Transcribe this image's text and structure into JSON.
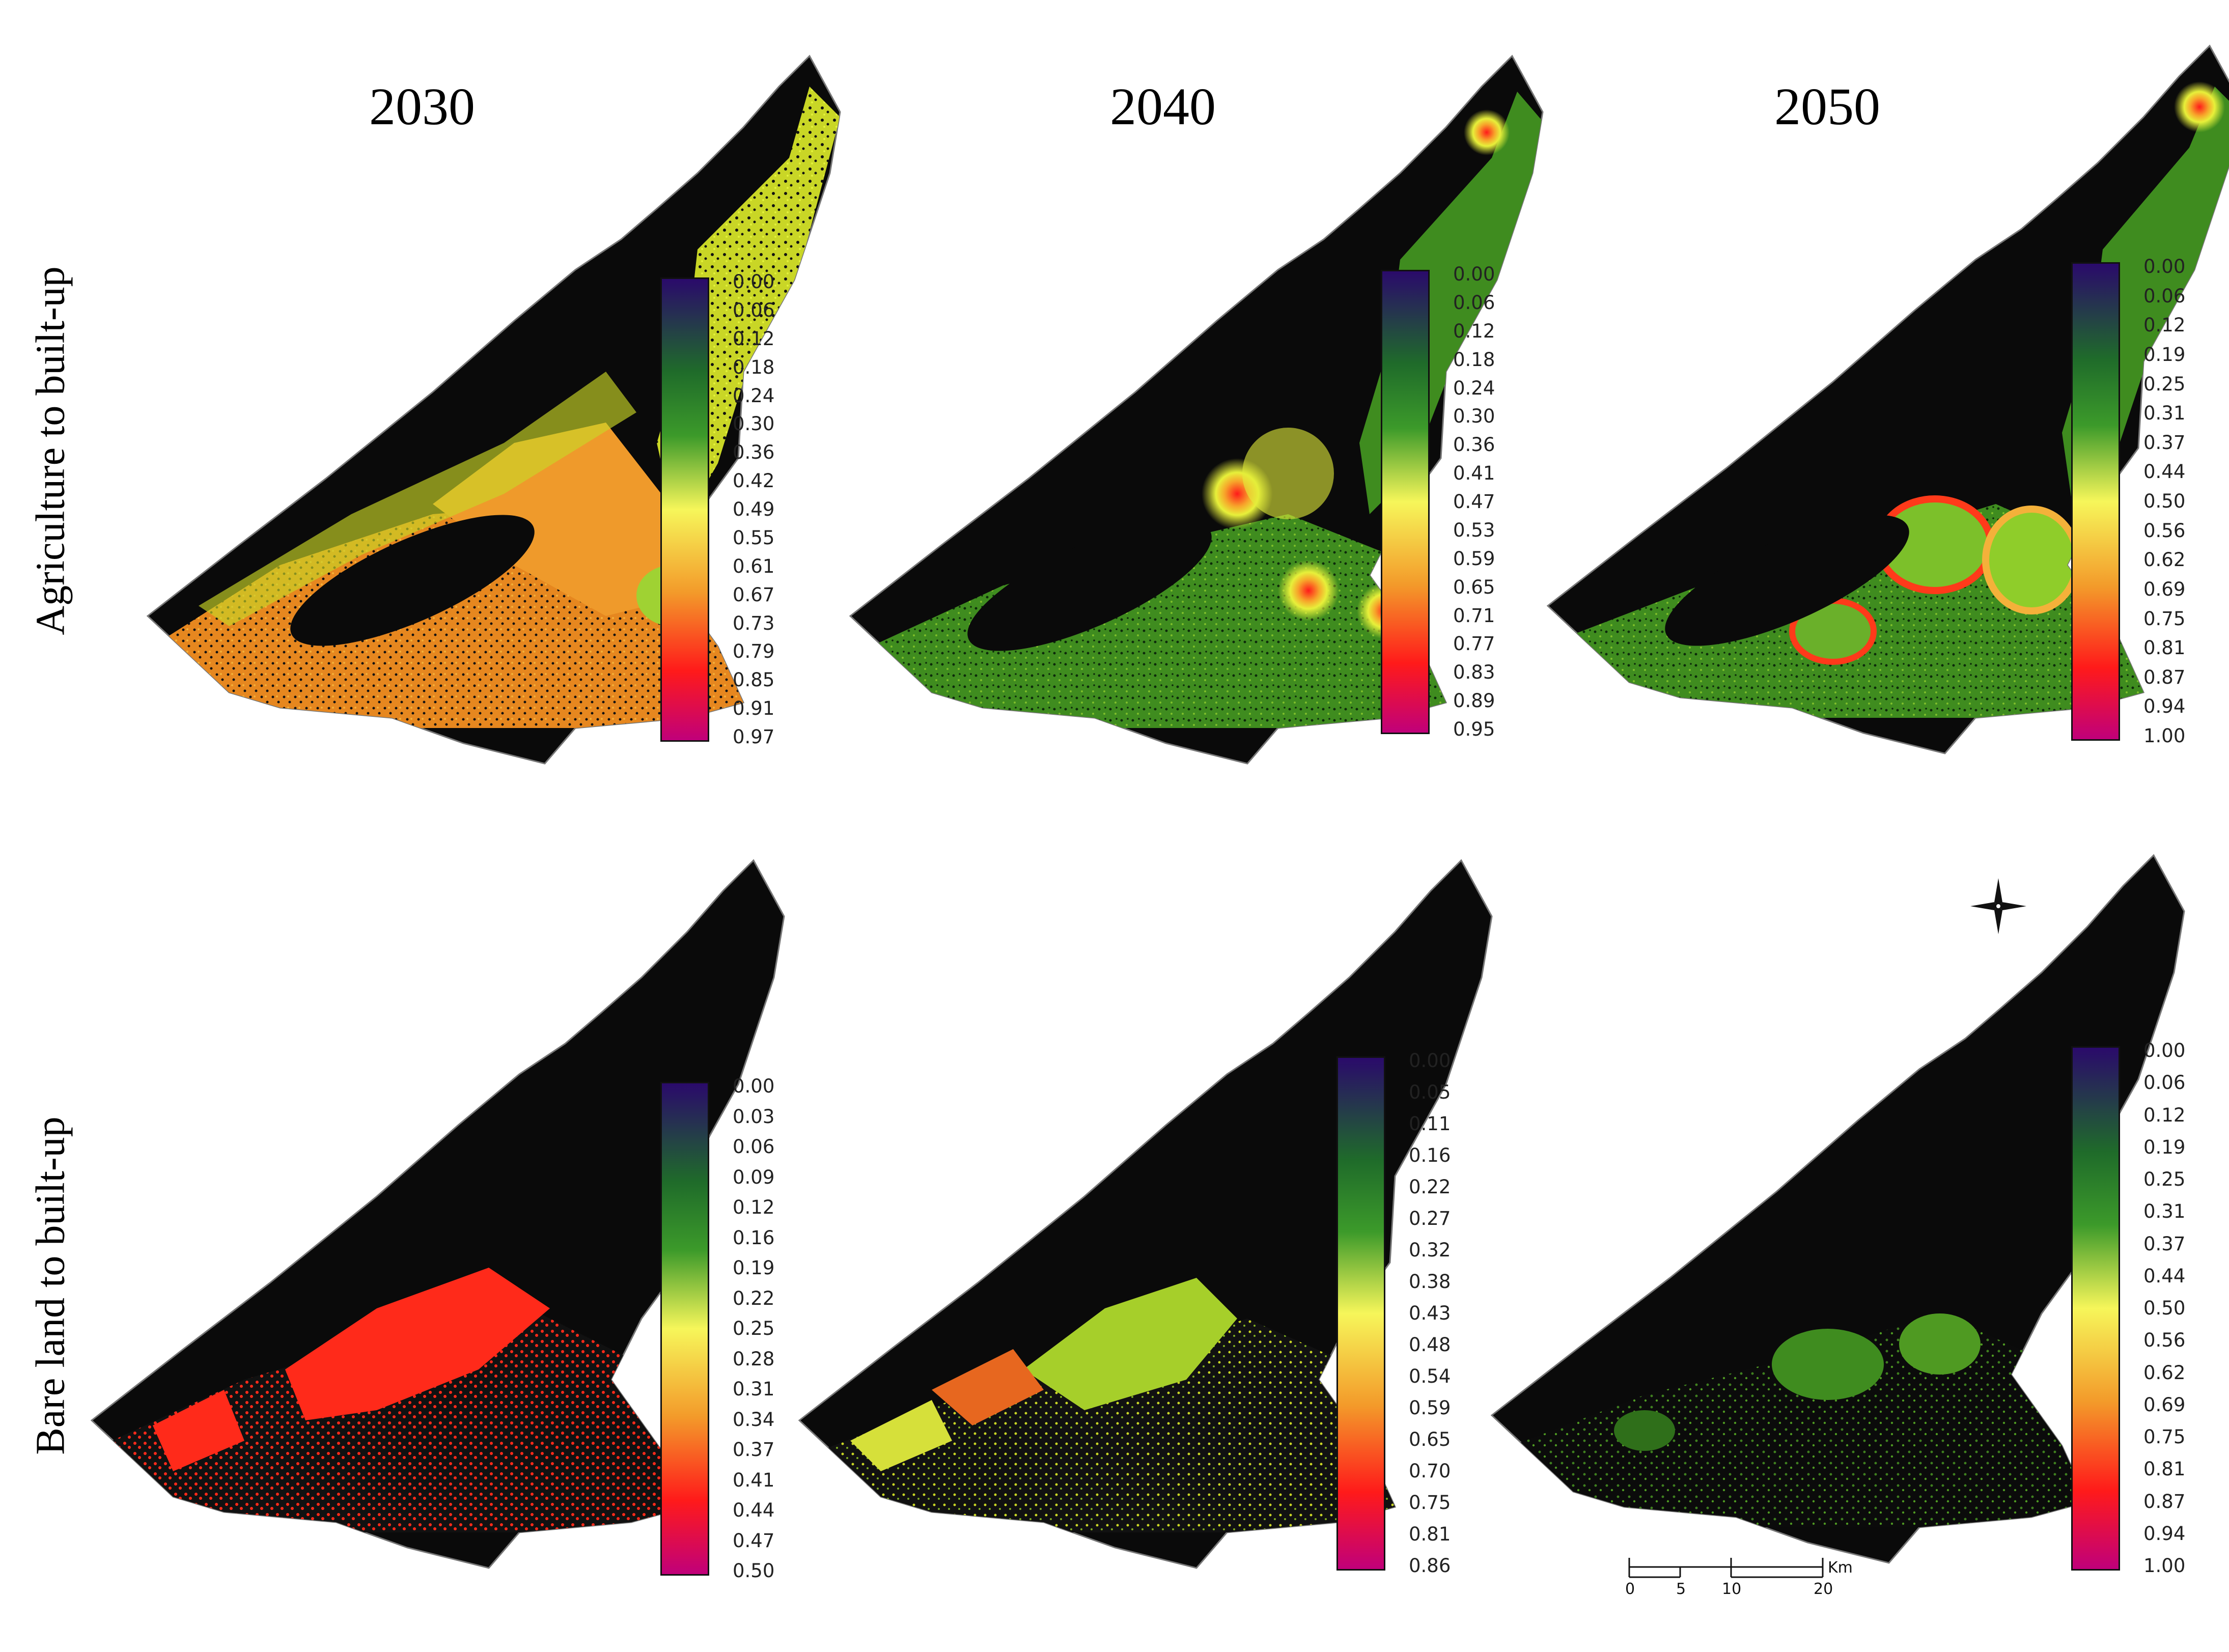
{
  "years": [
    "2030",
    "2040",
    "2050"
  ],
  "rows": [
    "Agriculture to built-up",
    "Bare land to built-up"
  ],
  "legend_colors": [
    "#2a0a6b",
    "#1f6b2a",
    "#5fae22",
    "#f6f65a",
    "#f39a2a",
    "#ff1a1a",
    "#c0007a"
  ],
  "panels": [
    {
      "id": "agri-2030",
      "ticks": [
        "0.00",
        "0.06",
        "0.12",
        "0.18",
        "0.24",
        "0.30",
        "0.36",
        "0.42",
        "0.49",
        "0.55",
        "0.61",
        "0.67",
        "0.73",
        "0.79",
        "0.85",
        "0.91",
        "0.97"
      ]
    },
    {
      "id": "agri-2040",
      "ticks": [
        "0.00",
        "0.06",
        "0.12",
        "0.18",
        "0.24",
        "0.30",
        "0.36",
        "0.41",
        "0.47",
        "0.53",
        "0.59",
        "0.65",
        "0.71",
        "0.77",
        "0.83",
        "0.89",
        "0.95"
      ]
    },
    {
      "id": "agri-2050",
      "ticks": [
        "0.00",
        "0.06",
        "0.12",
        "0.19",
        "0.25",
        "0.31",
        "0.37",
        "0.44",
        "0.50",
        "0.56",
        "0.62",
        "0.69",
        "0.75",
        "0.81",
        "0.87",
        "0.94",
        "1.00"
      ]
    },
    {
      "id": "bare-2030",
      "ticks": [
        "0.00",
        "0.03",
        "0.06",
        "0.09",
        "0.12",
        "0.16",
        "0.19",
        "0.22",
        "0.25",
        "0.28",
        "0.31",
        "0.34",
        "0.37",
        "0.41",
        "0.44",
        "0.47",
        "0.50"
      ]
    },
    {
      "id": "bare-2040",
      "ticks": [
        "0.00",
        "0.05",
        "0.11",
        "0.16",
        "0.22",
        "0.27",
        "0.32",
        "0.38",
        "0.43",
        "0.48",
        "0.54",
        "0.59",
        "0.65",
        "0.70",
        "0.75",
        "0.81",
        "0.86"
      ]
    },
    {
      "id": "bare-2050",
      "ticks": [
        "0.00",
        "0.06",
        "0.12",
        "0.19",
        "0.25",
        "0.31",
        "0.37",
        "0.44",
        "0.50",
        "0.56",
        "0.62",
        "0.69",
        "0.75",
        "0.81",
        "0.87",
        "0.94",
        "1.00"
      ]
    }
  ],
  "scale_bar": {
    "labels": [
      "0",
      "5",
      "10",
      "20"
    ],
    "unit": "Km"
  }
}
